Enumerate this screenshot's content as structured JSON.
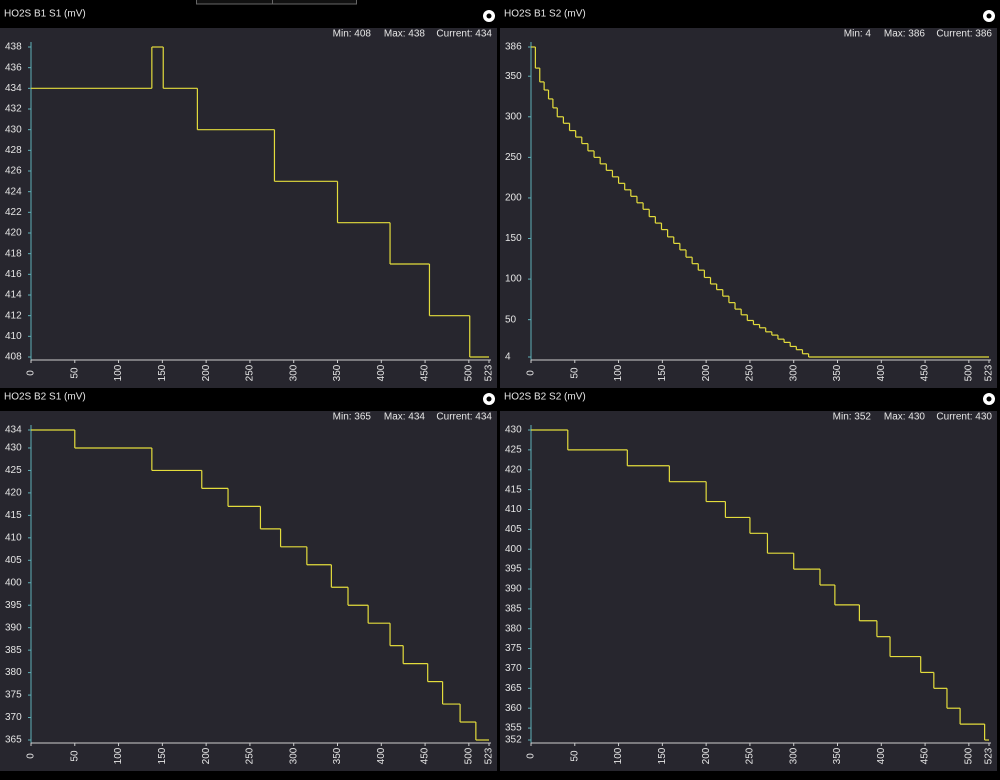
{
  "chart_data": [
    {
      "type": "line",
      "step": "post",
      "title": "HO2S B1 S1 (mV)",
      "stats": [
        "Min: 408",
        "Max: 438",
        "Current: 434"
      ],
      "xlim": [
        0,
        523
      ],
      "xticks": [
        0,
        50,
        100,
        150,
        200,
        250,
        300,
        350,
        400,
        450,
        500,
        523
      ],
      "ylim": [
        408,
        438
      ],
      "yticks": [
        408,
        410,
        412,
        414,
        416,
        418,
        420,
        422,
        424,
        426,
        428,
        430,
        432,
        434,
        436,
        438
      ],
      "series": [
        {
          "color": "#e3dc3c",
          "x": [
            0,
            138,
            151,
            190,
            278,
            350,
            410,
            455,
            501
          ],
          "values": [
            434,
            438,
            434,
            430,
            425,
            421,
            417,
            412,
            408
          ]
        }
      ]
    },
    {
      "type": "line",
      "step": "post",
      "title": "HO2S B1 S2 (mV)",
      "stats": [
        "Min: 4",
        "Max: 386",
        "Current: 386"
      ],
      "xlim": [
        0,
        523
      ],
      "xticks": [
        0,
        50,
        100,
        150,
        200,
        250,
        300,
        350,
        400,
        450,
        500,
        523
      ],
      "ylim": [
        4,
        386
      ],
      "yticks": [
        4,
        50,
        100,
        150,
        200,
        250,
        300,
        350,
        386
      ],
      "series": [
        {
          "color": "#e3dc3c",
          "x": [
            0,
            5,
            10,
            15,
            20,
            25,
            30,
            37,
            44,
            51,
            58,
            65,
            72,
            79,
            86,
            93,
            100,
            107,
            114,
            121,
            128,
            135,
            142,
            149,
            156,
            163,
            170,
            177,
            184,
            191,
            198,
            205,
            212,
            219,
            226,
            233,
            240,
            247,
            254,
            261,
            268,
            275,
            282,
            289,
            296,
            303,
            310,
            317
          ],
          "values": [
            386,
            360,
            343,
            333,
            322,
            311,
            300,
            292,
            283,
            275,
            267,
            258,
            250,
            242,
            234,
            226,
            218,
            210,
            202,
            194,
            186,
            177,
            169,
            161,
            152,
            144,
            136,
            127,
            119,
            111,
            102,
            94,
            87,
            79,
            71,
            63,
            56,
            49,
            44,
            40,
            35,
            31,
            26,
            22,
            17,
            13,
            8,
            4
          ]
        }
      ]
    },
    {
      "type": "line",
      "step": "post",
      "title": "HO2S B2 S1 (mV)",
      "stats": [
        "Min: 365",
        "Max: 434",
        "Current: 434"
      ],
      "xlim": [
        0,
        523
      ],
      "xticks": [
        0,
        50,
        100,
        150,
        200,
        250,
        300,
        350,
        400,
        450,
        500,
        523
      ],
      "ylim": [
        365,
        434
      ],
      "yticks": [
        365,
        370,
        375,
        380,
        385,
        390,
        395,
        400,
        405,
        410,
        415,
        420,
        425,
        430,
        434
      ],
      "series": [
        {
          "color": "#e3dc3c",
          "x": [
            0,
            50,
            138,
            195,
            225,
            262,
            285,
            315,
            343,
            362,
            385,
            410,
            425,
            453,
            470,
            490,
            508
          ],
          "values": [
            434,
            430,
            425,
            421,
            417,
            412,
            408,
            404,
            399,
            395,
            391,
            386,
            382,
            378,
            373,
            369,
            365
          ]
        }
      ]
    },
    {
      "type": "line",
      "step": "post",
      "title": "HO2S B2 S2 (mV)",
      "stats": [
        "Min: 352",
        "Max: 430",
        "Current: 430"
      ],
      "xlim": [
        0,
        523
      ],
      "xticks": [
        0,
        50,
        100,
        150,
        200,
        250,
        300,
        350,
        400,
        450,
        500,
        523
      ],
      "ylim": [
        352,
        430
      ],
      "yticks": [
        352,
        355,
        360,
        365,
        370,
        375,
        380,
        385,
        390,
        395,
        400,
        405,
        410,
        415,
        420,
        425,
        430
      ],
      "series": [
        {
          "color": "#e3dc3c",
          "x": [
            0,
            42,
            110,
            158,
            200,
            222,
            250,
            270,
            300,
            330,
            347,
            375,
            395,
            410,
            445,
            460,
            475,
            490,
            518
          ],
          "values": [
            430,
            425,
            421,
            417,
            412,
            408,
            404,
            399,
            395,
            391,
            386,
            382,
            378,
            373,
            369,
            365,
            360,
            356,
            352
          ]
        }
      ]
    }
  ]
}
